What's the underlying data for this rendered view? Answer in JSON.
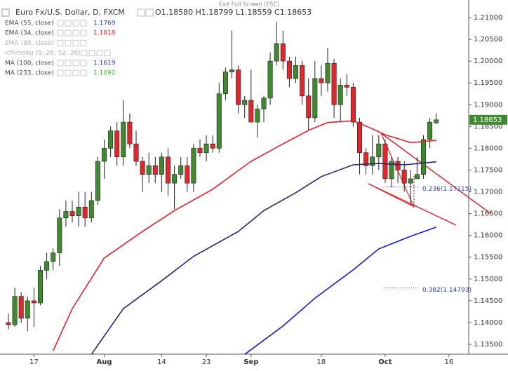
{
  "header": {
    "title": "Euro Fx/U.S. Dollar, D, FXCM",
    "ohlc": "O1.18580 H1.18799 L1.18559 C1.18653",
    "banner": "Exit Full Screen (ESC)"
  },
  "chart_data": {
    "type": "candlestick",
    "categories": [
      null,
      null,
      null,
      null,
      "17",
      null,
      null,
      null,
      null,
      null,
      null,
      null,
      null,
      null,
      null,
      "Aug",
      null,
      null,
      null,
      null,
      null,
      null,
      null,
      null,
      "14",
      null,
      null,
      null,
      null,
      null,
      null,
      "23",
      null,
      null,
      null,
      null,
      null,
      null,
      "Sep",
      null,
      null,
      null,
      null,
      null,
      null,
      null,
      null,
      null,
      null,
      "18",
      null,
      null,
      null,
      null,
      null,
      null,
      null,
      null,
      null,
      "Oct",
      null,
      null,
      null,
      null,
      null,
      null,
      null,
      null,
      null,
      "16"
    ],
    "open": [
      1.14,
      1.1395,
      1.146,
      1.141,
      1.145,
      1.1445,
      1.152,
      1.154,
      1.156,
      1.164,
      1.1655,
      1.1645,
      1.1665,
      1.164,
      1.168,
      1.177,
      1.18,
      1.184,
      1.178,
      1.186,
      1.181,
      1.177,
      1.174,
      1.176,
      1.174,
      1.178,
      1.172,
      1.174,
      1.176,
      1.172,
      1.18,
      1.179,
      1.181,
      1.18,
      1.1925,
      1.1975,
      1.198,
      1.19,
      1.191,
      1.186,
      1.189,
      1.1915,
      1.2,
      1.204,
      1.2,
      1.196,
      1.199,
      1.192,
      1.187,
      1.196,
      1.195,
      1.1995,
      1.19,
      1.1945,
      1.194,
      1.186,
      1.179,
      1.176,
      1.178,
      1.181,
      1.173,
      1.177,
      1.175,
      1.172,
      1.173,
      1.174,
      1.182,
      1.1858,
      null,
      null
    ],
    "high": [
      1.142,
      1.148,
      1.147,
      1.146,
      1.148,
      1.153,
      1.156,
      1.157,
      1.166,
      1.168,
      1.168,
      1.17,
      1.17,
      1.17,
      1.178,
      1.182,
      1.185,
      1.186,
      1.191,
      1.188,
      1.184,
      1.178,
      1.179,
      1.178,
      1.179,
      1.18,
      1.176,
      1.178,
      1.178,
      1.181,
      1.182,
      1.183,
      1.183,
      1.195,
      1.1985,
      1.207,
      1.199,
      1.192,
      1.198,
      1.19,
      1.192,
      1.202,
      1.209,
      1.207,
      1.201,
      1.201,
      1.2,
      1.196,
      1.2,
      1.199,
      1.203,
      1.2005,
      1.196,
      1.197,
      1.195,
      1.187,
      1.18,
      1.183,
      1.183,
      1.182,
      1.178,
      1.178,
      1.177,
      1.175,
      1.178,
      1.183,
      1.187,
      1.18799,
      null,
      null
    ],
    "low": [
      1.1385,
      1.139,
      1.14,
      1.138,
      1.139,
      1.144,
      1.15,
      1.152,
      1.153,
      1.162,
      1.163,
      1.162,
      1.162,
      1.163,
      1.167,
      1.173,
      1.178,
      1.176,
      1.176,
      1.18,
      1.176,
      1.17,
      1.172,
      1.172,
      1.17,
      1.169,
      1.166,
      1.173,
      1.17,
      1.17,
      1.178,
      1.177,
      1.179,
      1.179,
      1.191,
      1.196,
      1.188,
      1.187,
      1.186,
      1.1825,
      1.186,
      1.19,
      1.199,
      1.198,
      1.194,
      1.195,
      1.19,
      1.184,
      1.186,
      1.192,
      1.193,
      1.187,
      1.186,
      1.192,
      1.185,
      1.174,
      1.174,
      1.174,
      1.175,
      1.172,
      1.171,
      1.172,
      1.17,
      1.167,
      1.173,
      1.173,
      1.18,
      1.18559,
      null,
      null
    ],
    "close": [
      1.1395,
      1.146,
      1.141,
      1.145,
      1.1445,
      1.152,
      1.154,
      1.156,
      1.164,
      1.1655,
      1.1645,
      1.1665,
      1.164,
      1.168,
      1.177,
      1.18,
      1.184,
      1.178,
      1.186,
      1.181,
      1.177,
      1.174,
      1.176,
      1.174,
      1.178,
      1.172,
      1.174,
      1.176,
      1.172,
      1.18,
      1.179,
      1.181,
      1.18,
      1.1925,
      1.1975,
      1.198,
      1.19,
      1.191,
      1.186,
      1.189,
      1.1915,
      1.2,
      1.204,
      1.2,
      1.196,
      1.199,
      1.192,
      1.187,
      1.196,
      1.195,
      1.1995,
      1.19,
      1.1945,
      1.194,
      1.186,
      1.179,
      1.176,
      1.178,
      1.181,
      1.173,
      1.177,
      1.175,
      1.172,
      1.173,
      1.174,
      1.182,
      1.186,
      1.18653,
      null,
      null
    ],
    "up_color": "#3f8a2f",
    "down_color": "#e2262b",
    "ylim": [
      1.13275,
      1.21402
    ],
    "yticks": [
      {
        "value": 1.135,
        "label": "1.13500"
      },
      {
        "value": 1.14,
        "label": "1.14000"
      },
      {
        "value": 1.145,
        "label": "1.14500"
      },
      {
        "value": 1.15,
        "label": "1.15000"
      },
      {
        "value": 1.155,
        "label": "1.15500"
      },
      {
        "value": 1.16,
        "label": "1.16000"
      },
      {
        "value": 1.165,
        "label": "1.16500"
      },
      {
        "value": 1.17,
        "label": "1.17000"
      },
      {
        "value": 1.175,
        "label": "1.17500"
      },
      {
        "value": 1.18,
        "label": "1.18000"
      },
      {
        "value": 1.185,
        "label": "1.18500"
      },
      {
        "value": 1.19,
        "label": "1.19000"
      },
      {
        "value": 1.195,
        "label": "1.19500"
      },
      {
        "value": 1.2,
        "label": "1.20000"
      },
      {
        "value": 1.205,
        "label": "1.20500"
      },
      {
        "value": 1.21,
        "label": "1.21000"
      }
    ],
    "grid": false,
    "indicators": [
      {
        "name": "EMA (55, close)",
        "last": 1.1769,
        "label_color": "#2a3bb0",
        "color": "#23237f",
        "x": [
          13,
          18,
          24,
          29,
          36,
          40,
          45,
          49,
          54,
          58,
          62,
          67
        ],
        "values": [
          1.1327,
          1.1432,
          1.1496,
          1.1552,
          1.1609,
          1.1657,
          1.1698,
          1.1735,
          1.1762,
          1.1765,
          1.1762,
          1.1769
        ]
      },
      {
        "name": "EMA (34, close)",
        "last": 1.1818,
        "label_color": "#e2262b",
        "color": "#e8202a",
        "x": [
          7,
          10,
          15,
          21,
          26,
          32,
          35,
          38,
          43,
          47,
          50,
          54,
          56,
          59,
          63,
          67
        ],
        "values": [
          1.1335,
          1.1432,
          1.1548,
          1.1609,
          1.1657,
          1.1706,
          1.1738,
          1.177,
          1.181,
          1.1841,
          1.1859,
          1.1863,
          1.1851,
          1.1831,
          1.1813,
          1.1818
        ]
      },
      {
        "name": "EMA (89, close)",
        "label_color": "#b0b0b0"
      },
      {
        "name": "Ichimoku (9, 26, 52, 26)",
        "label_color": "#b0b0b0"
      },
      {
        "name": "MA (100, close)",
        "last": 1.1619,
        "label_color": "#2a3bb0",
        "color": "#1018e0",
        "x": [
          37,
          43,
          48,
          54,
          58,
          63,
          67
        ],
        "values": [
          1.1327,
          1.1392,
          1.1456,
          1.1521,
          1.1569,
          1.1598,
          1.1619
        ]
      },
      {
        "name": "MA (233, close)",
        "last": 1.1092,
        "label_color": "#3cbf2a"
      }
    ],
    "fib_levels": [
      {
        "label": "0.236(1.17115)",
        "value": 1.17115
      },
      {
        "label": "0.382(1.14793)",
        "value": 1.14793
      }
    ]
  }
}
